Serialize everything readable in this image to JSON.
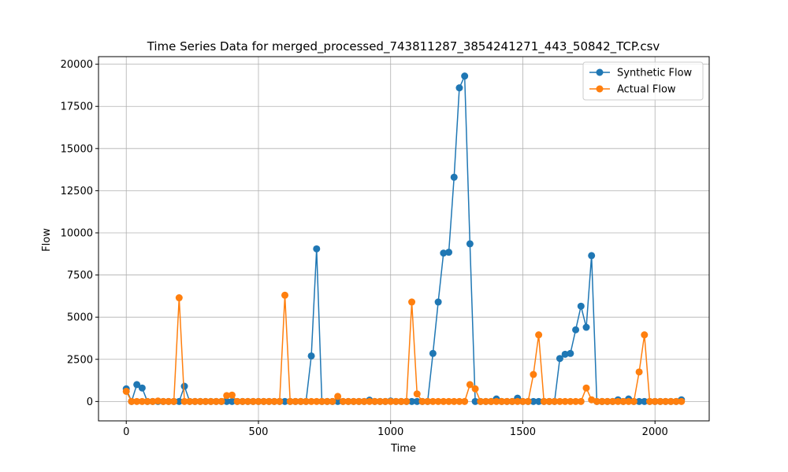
{
  "chart_data": {
    "type": "line",
    "title": "Time Series Data for merged_processed_743811287_3854241271_443_50842_TCP.csv",
    "xlabel": "Time",
    "ylabel": "Flow",
    "xlim": [
      -105,
      2205
    ],
    "ylim": [
      -1150,
      20450
    ],
    "xticks": [
      0,
      500,
      1000,
      1500,
      2000
    ],
    "yticks": [
      0,
      2500,
      5000,
      7500,
      10000,
      12500,
      15000,
      17500,
      20000
    ],
    "grid": true,
    "legend_position": "top-right",
    "series": [
      {
        "name": "Synthetic Flow",
        "color": "#1f77b4",
        "x": [
          0,
          20,
          40,
          60,
          80,
          100,
          120,
          140,
          160,
          180,
          200,
          220,
          240,
          260,
          280,
          300,
          320,
          340,
          360,
          380,
          400,
          420,
          440,
          460,
          480,
          500,
          520,
          540,
          560,
          580,
          600,
          620,
          640,
          660,
          680,
          700,
          720,
          740,
          760,
          780,
          800,
          820,
          840,
          860,
          880,
          900,
          920,
          940,
          960,
          980,
          1000,
          1020,
          1040,
          1060,
          1080,
          1100,
          1120,
          1140,
          1160,
          1180,
          1200,
          1220,
          1240,
          1260,
          1280,
          1300,
          1320,
          1340,
          1360,
          1380,
          1400,
          1420,
          1440,
          1460,
          1480,
          1500,
          1520,
          1540,
          1560,
          1580,
          1600,
          1620,
          1640,
          1660,
          1680,
          1700,
          1720,
          1740,
          1760,
          1780,
          1800,
          1820,
          1840,
          1860,
          1880,
          1900,
          1920,
          1940,
          1960,
          1980,
          2000,
          2020,
          2040,
          2060,
          2080,
          2100
        ],
        "values": [
          750,
          0,
          1000,
          800,
          0,
          0,
          0,
          0,
          0,
          0,
          0,
          900,
          0,
          0,
          0,
          0,
          0,
          0,
          0,
          0,
          0,
          0,
          0,
          0,
          0,
          0,
          0,
          0,
          0,
          0,
          0,
          0,
          0,
          0,
          0,
          2700,
          9050,
          0,
          0,
          0,
          0,
          0,
          0,
          0,
          0,
          0,
          80,
          0,
          0,
          0,
          30,
          0,
          0,
          0,
          0,
          0,
          0,
          0,
          2850,
          5900,
          8800,
          8850,
          13300,
          18600,
          19300,
          9350,
          0,
          0,
          0,
          0,
          150,
          0,
          0,
          0,
          200,
          0,
          0,
          0,
          0,
          0,
          0,
          0,
          2550,
          2800,
          2850,
          4250,
          5650,
          4400,
          8650,
          0,
          0,
          0,
          0,
          100,
          0,
          150,
          0,
          0,
          0,
          0,
          0,
          0,
          0,
          0,
          0,
          100
        ]
      },
      {
        "name": "Actual Flow",
        "color": "#ff7f0e",
        "x": [
          0,
          20,
          40,
          60,
          80,
          100,
          120,
          140,
          160,
          180,
          200,
          220,
          240,
          260,
          280,
          300,
          320,
          340,
          360,
          380,
          400,
          420,
          440,
          460,
          480,
          500,
          520,
          540,
          560,
          580,
          600,
          620,
          640,
          660,
          680,
          700,
          720,
          740,
          760,
          780,
          800,
          820,
          840,
          860,
          880,
          900,
          920,
          940,
          960,
          980,
          1000,
          1020,
          1040,
          1060,
          1080,
          1100,
          1120,
          1140,
          1160,
          1180,
          1200,
          1220,
          1240,
          1260,
          1280,
          1300,
          1320,
          1340,
          1360,
          1380,
          1400,
          1420,
          1440,
          1460,
          1480,
          1500,
          1520,
          1540,
          1560,
          1580,
          1600,
          1620,
          1640,
          1660,
          1680,
          1700,
          1720,
          1740,
          1760,
          1780,
          1800,
          1820,
          1840,
          1860,
          1880,
          1900,
          1920,
          1940,
          1960,
          1980,
          2000,
          2020,
          2040,
          2060,
          2080,
          2100
        ],
        "values": [
          600,
          0,
          0,
          0,
          0,
          0,
          30,
          0,
          0,
          0,
          6150,
          0,
          0,
          0,
          0,
          0,
          0,
          0,
          0,
          350,
          380,
          0,
          0,
          0,
          0,
          0,
          0,
          0,
          0,
          0,
          6300,
          0,
          0,
          0,
          0,
          0,
          0,
          0,
          0,
          0,
          300,
          0,
          0,
          0,
          0,
          0,
          0,
          0,
          0,
          0,
          0,
          0,
          0,
          0,
          5900,
          450,
          0,
          0,
          0,
          0,
          0,
          0,
          0,
          0,
          0,
          1000,
          750,
          0,
          0,
          0,
          0,
          0,
          0,
          0,
          0,
          0,
          0,
          1600,
          3950,
          0,
          0,
          0,
          0,
          0,
          0,
          0,
          0,
          800,
          100,
          0,
          0,
          0,
          0,
          0,
          0,
          0,
          0,
          1750,
          3950,
          0,
          0,
          0,
          0,
          0,
          0,
          0
        ]
      }
    ]
  }
}
